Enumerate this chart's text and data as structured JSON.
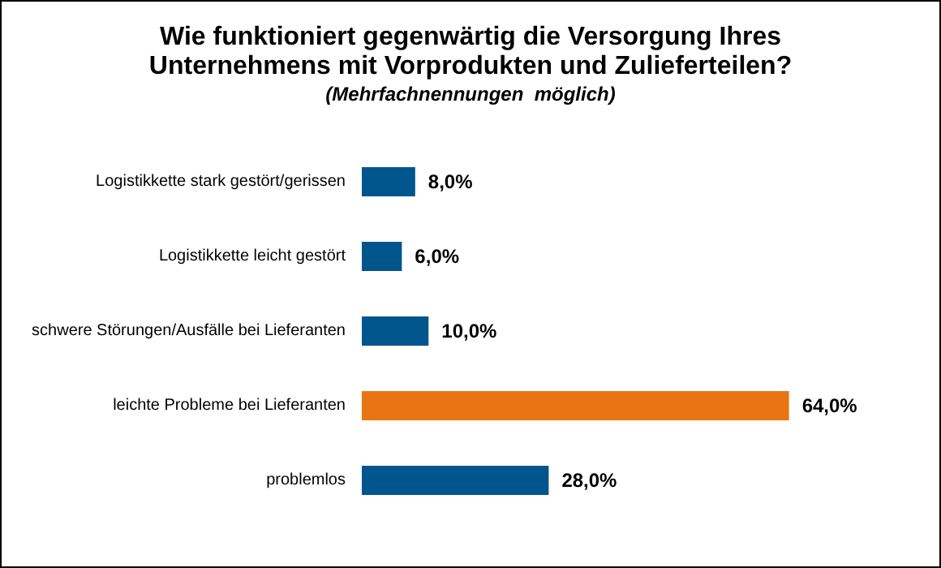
{
  "chart_data": {
    "type": "bar",
    "orientation": "horizontal",
    "title": "Wie funktioniert gegenwärtig die Versorgung Ihres\nUnternehmens mit Vorprodukten und Zulieferteilen?",
    "subtitle": "(Mehrfachnennungen  möglich)",
    "categories": [
      "Logistikkette stark gestört/gerissen",
      "Logistikkette leicht gestört",
      "schwere Störungen/Ausfälle bei Lieferanten",
      "leichte Probleme bei Lieferanten",
      "problemlos"
    ],
    "values": [
      8,
      6,
      10,
      64,
      28
    ],
    "colors": [
      "#00558c",
      "#00558c",
      "#00558c",
      "#e87511",
      "#00558c"
    ],
    "value_labels": [
      "8,0%",
      "6,0%",
      "10,0%",
      "64,0%",
      "28,0%"
    ],
    "grid": false
  }
}
